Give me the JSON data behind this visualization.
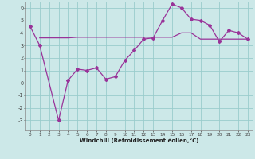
{
  "xlabel": "Windchill (Refroidissement éolien,°C)",
  "bg_color": "#cce8e8",
  "grid_color": "#99cccc",
  "line_color": "#993399",
  "xlim": [
    -0.5,
    23.5
  ],
  "ylim": [
    -3.8,
    6.5
  ],
  "xticks": [
    0,
    1,
    2,
    3,
    4,
    5,
    6,
    7,
    8,
    9,
    10,
    11,
    12,
    13,
    14,
    15,
    16,
    17,
    18,
    19,
    20,
    21,
    22,
    23
  ],
  "yticks": [
    -3,
    -2,
    -1,
    0,
    1,
    2,
    3,
    4,
    5,
    6
  ],
  "line1_x": [
    0,
    1,
    3,
    4,
    5,
    6,
    7,
    8,
    9,
    10,
    11,
    12,
    13,
    14,
    15,
    16,
    17,
    18,
    19,
    20,
    21,
    22,
    23
  ],
  "line1_y": [
    4.5,
    3.0,
    -3.0,
    0.2,
    1.1,
    1.0,
    1.2,
    0.3,
    0.5,
    1.8,
    2.6,
    3.5,
    3.6,
    5.0,
    6.3,
    6.0,
    5.1,
    5.0,
    4.6,
    3.3,
    4.2,
    4.0,
    3.5
  ],
  "line2_x": [
    1,
    3,
    4,
    5,
    6,
    7,
    8,
    9,
    10,
    11,
    12,
    13,
    14,
    15,
    16,
    17,
    18,
    19,
    20,
    21,
    22,
    23
  ],
  "line2_y": [
    3.6,
    3.6,
    3.6,
    3.65,
    3.65,
    3.65,
    3.65,
    3.65,
    3.65,
    3.65,
    3.65,
    3.65,
    3.65,
    3.65,
    4.0,
    4.0,
    3.5,
    3.5,
    3.5,
    3.5,
    3.5,
    3.5
  ],
  "xlabel_fontsize": 5.0,
  "tick_fontsize": 4.2,
  "marker_size": 2.0
}
